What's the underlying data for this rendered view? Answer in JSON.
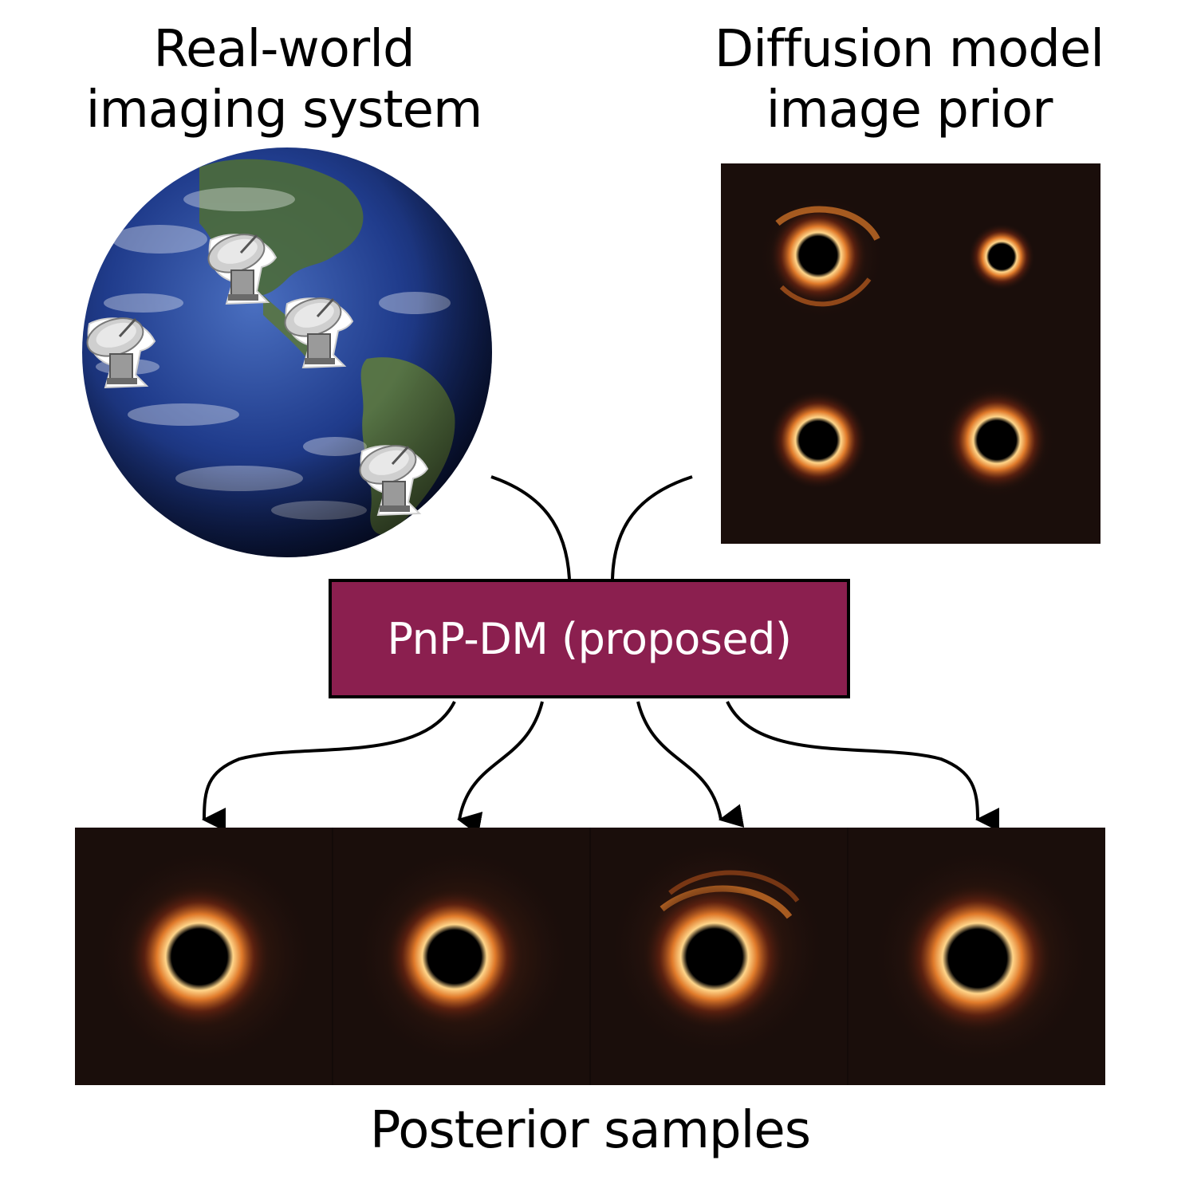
{
  "labels": {
    "left_title": [
      "Real-world",
      "imaging system"
    ],
    "right_title": [
      "Diffusion model",
      "image prior"
    ],
    "method": "PnP-DM (proposed)",
    "bottom_title": "Posterior samples"
  },
  "colors": {
    "method_box": "#8b1f4f",
    "panel_background": "#1a0e0b",
    "ring_bright": "#ffd58a",
    "ring_mid": "#e07a2a",
    "ring_dark": "#6b2410",
    "ocean": "#203c8c"
  },
  "icons": [
    "radio-telescope-icon",
    "earth-globe-image",
    "black-hole-image"
  ]
}
